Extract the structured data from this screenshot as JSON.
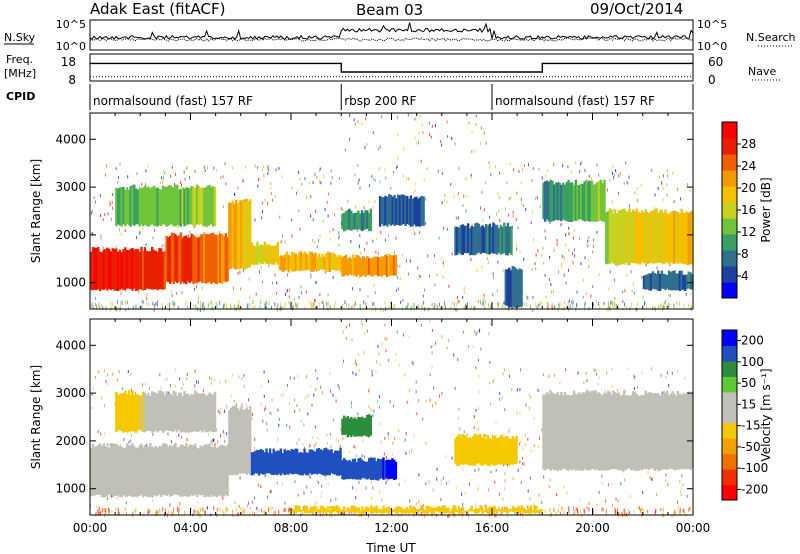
{
  "header": {
    "title": "Adak East (fitACF)",
    "beam": "Beam 03",
    "date": "09/Oct/2014"
  },
  "summary": {
    "nsky": {
      "label": "N.Sky",
      "ticks": [
        "10^5",
        "10^0"
      ]
    },
    "nsearch": {
      "label": "N.Search",
      "ticks": [
        "10^5",
        "10^0"
      ]
    },
    "freq": {
      "label_top": "Freq.",
      "label_unit": "[MHz]",
      "ticks": [
        "18",
        "8"
      ],
      "segments": [
        {
          "t0": 0,
          "t1": 10,
          "mhz": 15.3
        },
        {
          "t0": 10,
          "t1": 18,
          "mhz": 11.0
        },
        {
          "t0": 18,
          "t1": 24,
          "mhz": 15.3
        }
      ]
    },
    "nave": {
      "label": "Nave",
      "ticks": [
        "60",
        "0"
      ],
      "value": 8
    },
    "cpid": {
      "label": "CPID",
      "segments": [
        {
          "t0": 0,
          "t1": 10,
          "name": "normalsound (fast) 157 RF"
        },
        {
          "t0": 10,
          "t1": 16,
          "name": "rbsp 200 RF"
        },
        {
          "t0": 16,
          "t1": 24,
          "name": "normalsound (fast) 157 RF"
        }
      ]
    }
  },
  "chart_data": [
    {
      "type": "heatmap",
      "panel": "power",
      "xlabel": "",
      "ylabel": "Slant Range [km]",
      "xlim": [
        0,
        24
      ],
      "ylim": [
        450,
        4550
      ],
      "y_ticks": [
        1000,
        2000,
        3000,
        4000
      ],
      "colorbar": {
        "label": "Power [dB]",
        "ticks": [
          4,
          8,
          12,
          16,
          20,
          24,
          28
        ],
        "range": [
          0,
          32
        ],
        "colors": [
          "#0000ff",
          "#1d3fa0",
          "#2f6f8f",
          "#3aa060",
          "#6fc43a",
          "#c8d020",
          "#f5c000",
          "#f59a00",
          "#f06000",
          "#e82000",
          "#ff0000"
        ]
      },
      "echo_bands": [
        {
          "t0": 0.0,
          "t1": 3.0,
          "r_low": 850,
          "r_high": 1700,
          "v0": 29,
          "v1": 27
        },
        {
          "t0": 3.0,
          "t1": 5.5,
          "r_low": 1000,
          "r_high": 2000,
          "v0": 27,
          "v1": 23
        },
        {
          "t0": 5.5,
          "t1": 6.4,
          "r_low": 1300,
          "r_high": 2700,
          "v0": 22,
          "v1": 16
        },
        {
          "t0": 6.4,
          "t1": 7.5,
          "r_low": 1400,
          "r_high": 1800,
          "v0": 16,
          "v1": 18
        },
        {
          "t0": 7.5,
          "t1": 10.0,
          "r_low": 1250,
          "r_high": 1600,
          "v0": 20,
          "v1": 19
        },
        {
          "t0": 10.0,
          "t1": 12.2,
          "r_low": 1150,
          "r_high": 1550,
          "v0": 21,
          "v1": 22
        },
        {
          "t0": 1.0,
          "t1": 5.0,
          "r_low": 2200,
          "r_high": 3000,
          "v0": 12,
          "v1": 14
        },
        {
          "t0": 10.0,
          "t1": 11.2,
          "r_low": 2100,
          "r_high": 2500,
          "v0": 9,
          "v1": 10
        },
        {
          "t0": 11.5,
          "t1": 13.3,
          "r_low": 2200,
          "r_high": 2800,
          "v0": 6,
          "v1": 6
        },
        {
          "t0": 14.5,
          "t1": 16.8,
          "r_low": 1600,
          "r_high": 2200,
          "v0": 6,
          "v1": 8
        },
        {
          "t0": 16.5,
          "t1": 17.2,
          "r_low": 500,
          "r_high": 1300,
          "v0": 5,
          "v1": 7
        },
        {
          "t0": 18.0,
          "t1": 20.5,
          "r_low": 2300,
          "r_high": 3100,
          "v0": 8,
          "v1": 14
        },
        {
          "t0": 20.5,
          "t1": 24.0,
          "r_low": 1400,
          "r_high": 2500,
          "v0": 16,
          "v1": 20
        },
        {
          "t0": 22.0,
          "t1": 24.0,
          "r_low": 850,
          "r_high": 1200,
          "v0": 6,
          "v1": 7
        }
      ]
    },
    {
      "type": "heatmap",
      "panel": "velocity",
      "xlabel": "Time UT",
      "ylabel": "Slant Range [km]",
      "xlim": [
        0,
        24
      ],
      "ylim": [
        450,
        4550
      ],
      "y_ticks": [
        1000,
        2000,
        3000,
        4000
      ],
      "x_ticks": [
        "00:00",
        "04:00",
        "08:00",
        "12:00",
        "16:00",
        "20:00",
        "00:00"
      ],
      "colorbar": {
        "label": "Velocity [m s⁻¹]",
        "ticks": [
          -200,
          -100,
          -50,
          -15,
          15,
          50,
          100,
          200
        ],
        "range": [
          -250,
          250
        ],
        "colors": [
          "#ff0000",
          "#f03000",
          "#f07000",
          "#f5a000",
          "#f5c800",
          "#c0c0b8",
          "#c0c0b8",
          "#5cc832",
          "#2c8c3c",
          "#2050c0",
          "#0000ff"
        ]
      },
      "echo_bands": [
        {
          "t0": 0.0,
          "t1": 5.5,
          "r_low": 850,
          "r_high": 1900,
          "v0": 0,
          "v1": 0
        },
        {
          "t0": 5.5,
          "t1": 6.4,
          "r_low": 1300,
          "r_high": 2700,
          "v0": 5,
          "v1": 0
        },
        {
          "t0": 6.4,
          "t1": 10.0,
          "r_low": 1300,
          "r_high": 1800,
          "v0": 180,
          "v1": 170
        },
        {
          "t0": 10.0,
          "t1": 12.2,
          "r_low": 1200,
          "r_high": 1600,
          "v0": 190,
          "v1": 210
        },
        {
          "t0": 10.0,
          "t1": 11.2,
          "r_low": 2100,
          "r_high": 2500,
          "v0": 150,
          "v1": 120
        },
        {
          "t0": 14.5,
          "t1": 17.0,
          "r_low": 1500,
          "r_high": 2100,
          "v0": -60,
          "v1": -40
        },
        {
          "t0": 18.0,
          "t1": 24.0,
          "r_low": 1400,
          "r_high": 3000,
          "v0": 0,
          "v1": 0
        },
        {
          "t0": 1.0,
          "t1": 5.0,
          "r_low": 2200,
          "r_high": 3000,
          "v0": -40,
          "v1": 30
        },
        {
          "t0": 8.0,
          "t1": 18.0,
          "r_low": 500,
          "r_high": 600,
          "v0": -30,
          "v1": -30
        }
      ]
    }
  ]
}
